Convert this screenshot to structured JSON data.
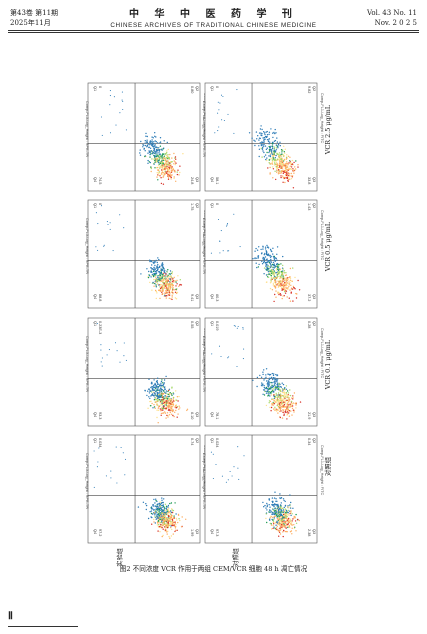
{
  "header": {
    "volume_left": "第43卷 第11期",
    "date_left": "2025年11月",
    "journal_cn": "中 华 中 医 药 学 刊",
    "journal_en": "CHINESE ARCHIVES OF TRADITIONAL CHINESE MEDICINE",
    "volume_right": "Vol. 43 No. 11",
    "date_right": "Nov. 2 0 2 5"
  },
  "figure": {
    "caption": "图2  不同浓度 VCR 作用于两组 CEM/VCR 细胞 48 h 凋亡情况",
    "row_labels": [
      "实验组",
      "对照组"
    ],
    "conditions": [
      "对照组",
      "VCR 0.1 μg/mL",
      "VCR 0.5 μg/mL",
      "VCR 2.5 μg/mL"
    ],
    "x_axis_label": "Comp-FL1-Log_Height : FITC",
    "y_axis_label": "Comp-FL3-Log_Height : RPE-TR",
    "quadrant_names": [
      "Q1",
      "Q2",
      "Q3",
      "Q4"
    ],
    "panels": [
      {
        "row": "实验组",
        "condition": "对照组",
        "Q1": "0.034",
        "Q2": "0.74",
        "Q3": "1.99",
        "Q4": "97.2"
      },
      {
        "row": "实验组",
        "condition": "VCR 0.1 μg/mL",
        "Q1": "0.23E-3",
        "Q2": "0.55",
        "Q3": "6.10",
        "Q4": "93.3"
      },
      {
        "row": "实验组",
        "condition": "VCR 0.5 μg/mL",
        "Q1": "0",
        "Q2": "1.75",
        "Q3": "9.41",
        "Q4": "88.8"
      },
      {
        "row": "实验组",
        "condition": "VCR 2.5 μg/mL",
        "Q1": "0",
        "Q2": "0.80",
        "Q3": "24.8",
        "Q4": "74.5"
      },
      {
        "row": "对照组",
        "condition": "对照组",
        "Q1": "0.024",
        "Q2": "0.34",
        "Q3": "2.38",
        "Q4": "97.3"
      },
      {
        "row": "对照组",
        "condition": "VCR 0.1 μg/mL",
        "Q1": "0.019",
        "Q2": "0.28",
        "Q3": "21.9",
        "Q4": "78.1"
      },
      {
        "row": "对照组",
        "condition": "VCR 0.5 μg/mL",
        "Q1": "0",
        "Q2": "1.43",
        "Q3": "37.2",
        "Q4": "60.3"
      },
      {
        "row": "对照组",
        "condition": "VCR 2.5 μg/mL",
        "Q1": "0",
        "Q2": "9.82",
        "Q3": "33.8",
        "Q4": "58.1"
      }
    ]
  },
  "footer": {
    "page_number": "Ⅱ"
  }
}
